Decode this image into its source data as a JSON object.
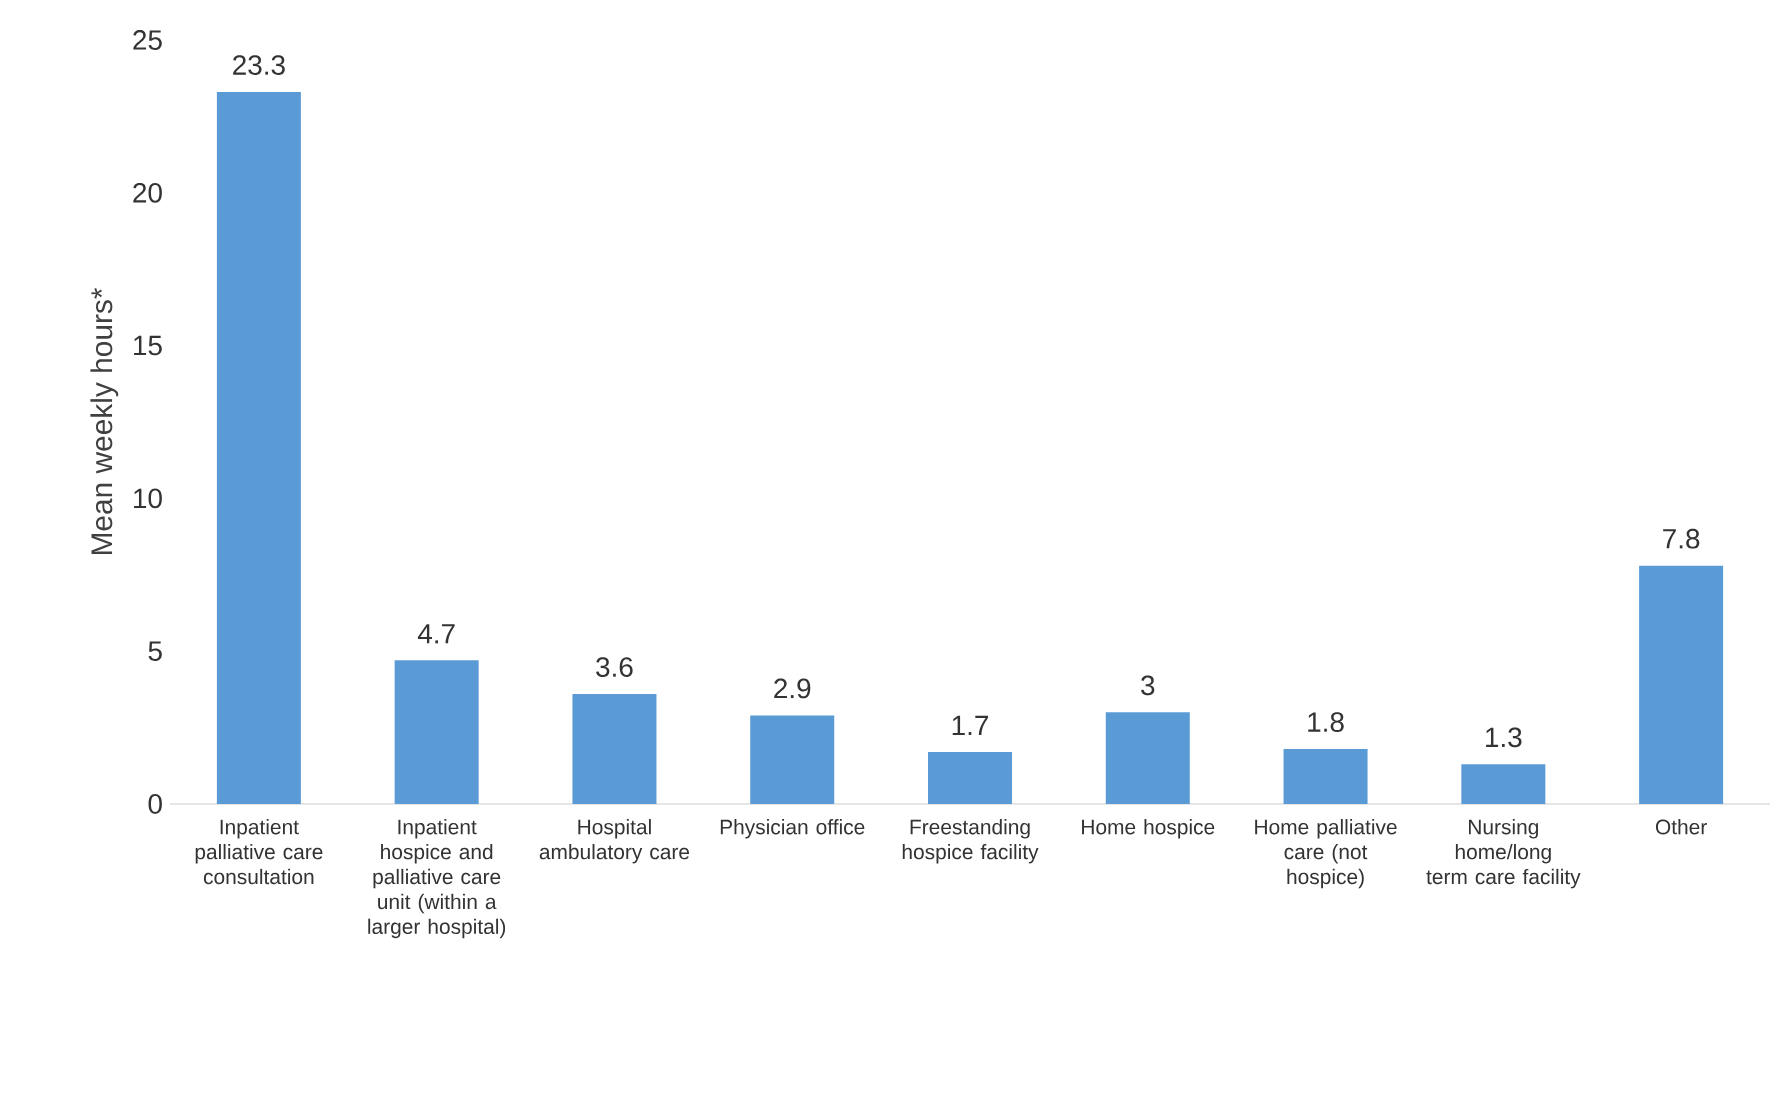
{
  "chart_data": {
    "type": "bar",
    "ylabel": "Mean weekly hours*",
    "categories": [
      "Inpatient palliative care consultation",
      "Inpatient hospice and palliative care unit (within a larger hospital)",
      "Hospital ambulatory care",
      "Physician office",
      "Freestanding hospice facility",
      "Home hospice",
      "Home palliative care (not hospice)",
      "Nursing home/long term care facility",
      "Other"
    ],
    "values": [
      23.3,
      4.7,
      3.6,
      2.9,
      1.7,
      3,
      1.8,
      1.3,
      7.8
    ],
    "color": "#5b9bd5",
    "ylim": [
      0,
      25
    ],
    "yticks": [
      0,
      5,
      10,
      15,
      20,
      25
    ],
    "data_labels": true
  }
}
